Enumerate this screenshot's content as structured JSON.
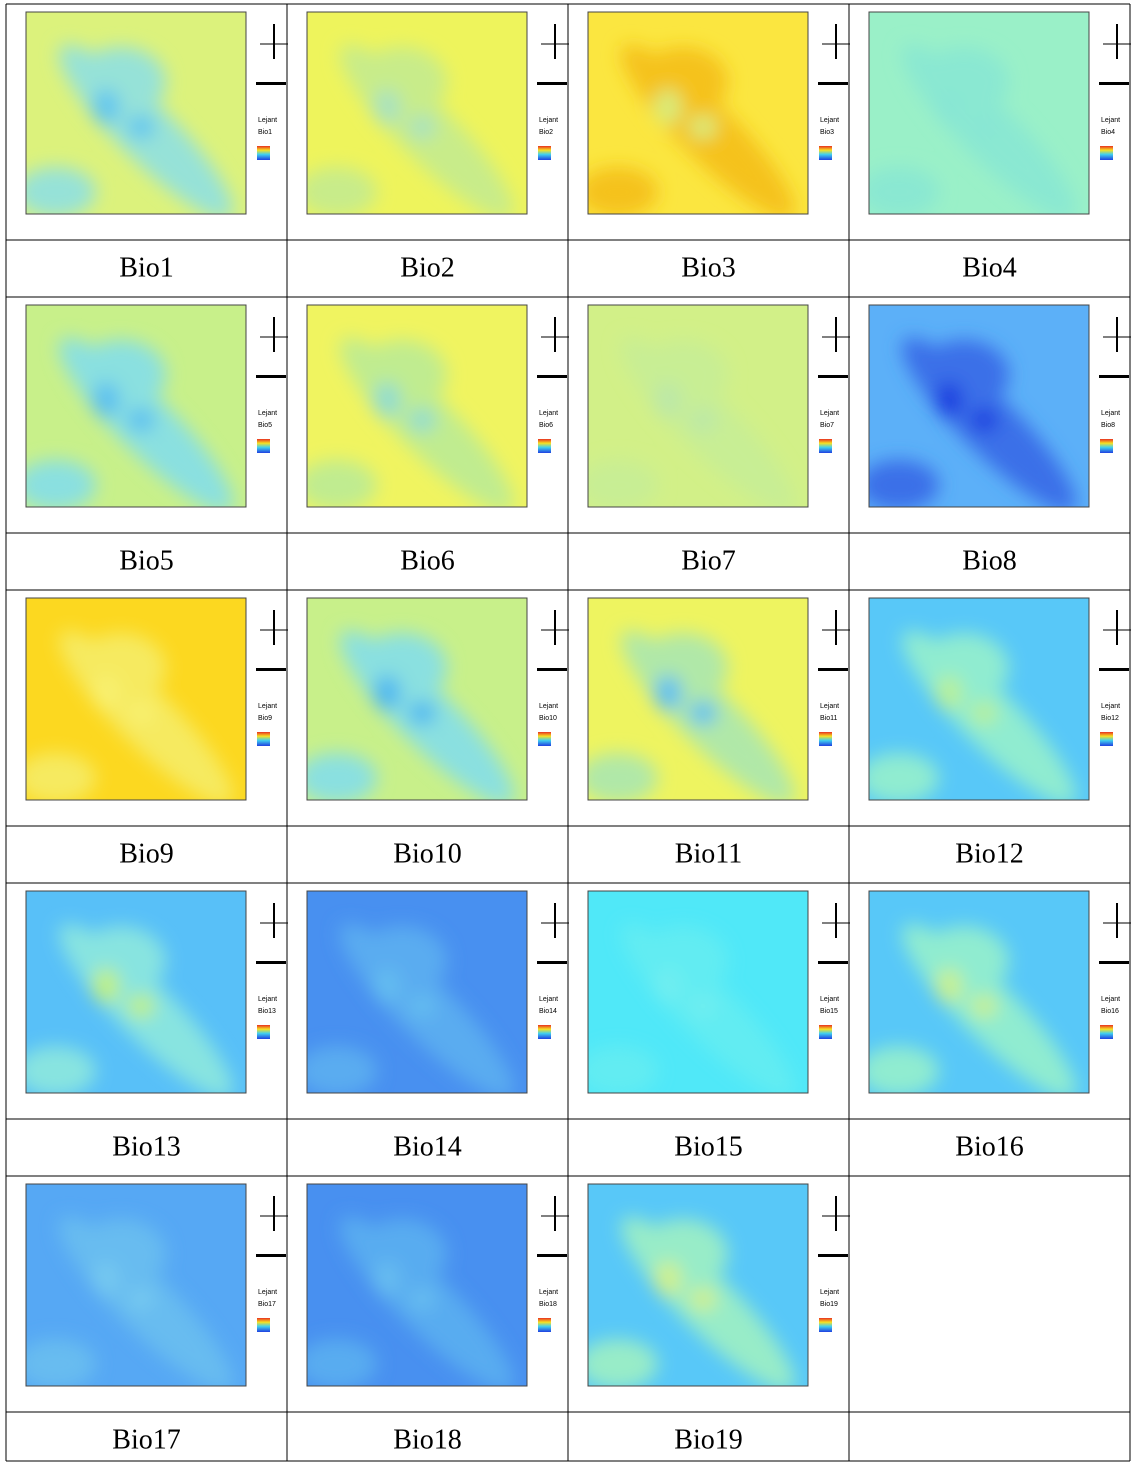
{
  "legend_title": "Lejant",
  "maps": [
    {
      "label": "Bio1",
      "base": "#dcf27c",
      "blob": "#96e2d8",
      "core": "#62c6ef"
    },
    {
      "label": "Bio2",
      "base": "#eef45c",
      "blob": "#c8ec8a",
      "core": "#a8e2c0"
    },
    {
      "label": "Bio3",
      "base": "#fbe640",
      "blob": "#f5c21a",
      "core": "#d8ec7a"
    },
    {
      "label": "Bio4",
      "base": "#9af0c8",
      "blob": "#8ae8d2",
      "core": "#88e6d4"
    },
    {
      "label": "Bio5",
      "base": "#c8f08a",
      "blob": "#8ae0e0",
      "core": "#5cc0f0"
    },
    {
      "label": "Bio6",
      "base": "#f0f460",
      "blob": "#c0ec90",
      "core": "#90dcd0"
    },
    {
      "label": "Bio7",
      "base": "#d2f088",
      "blob": "#c8ee94",
      "core": "#bce8a8"
    },
    {
      "label": "Bio8",
      "base": "#5cb0f8",
      "blob": "#3a70e8",
      "core": "#1e40e0"
    },
    {
      "label": "Bio9",
      "base": "#fcd820",
      "blob": "#f6ea60",
      "core": "#f8f070"
    },
    {
      "label": "Bio10",
      "base": "#c8f08a",
      "blob": "#8ae0e0",
      "core": "#50b8f0"
    },
    {
      "label": "Bio11",
      "base": "#eef460",
      "blob": "#b0e8a8",
      "core": "#60c0f0"
    },
    {
      "label": "Bio12",
      "base": "#58c8f8",
      "blob": "#90ecd0",
      "core": "#b8f09a"
    },
    {
      "label": "Bio13",
      "base": "#58c0f8",
      "blob": "#88e4e0",
      "core": "#c0f080"
    },
    {
      "label": "Bio14",
      "base": "#4890f0",
      "blob": "#5aacf0",
      "core": "#64bcf0"
    },
    {
      "label": "Bio15",
      "base": "#50e8f8",
      "blob": "#62ecf2",
      "core": "#70eef0"
    },
    {
      "label": "Bio16",
      "base": "#58c8f8",
      "blob": "#90ecd0",
      "core": "#c8f090"
    },
    {
      "label": "Bio17",
      "base": "#56a8f4",
      "blob": "#68bcf0",
      "core": "#74c8f0"
    },
    {
      "label": "Bio18",
      "base": "#4890f0",
      "blob": "#58acf0",
      "core": "#66bcf0"
    },
    {
      "label": "Bio19",
      "base": "#58c8f8",
      "blob": "#98ecc8",
      "core": "#d0f08c"
    }
  ]
}
